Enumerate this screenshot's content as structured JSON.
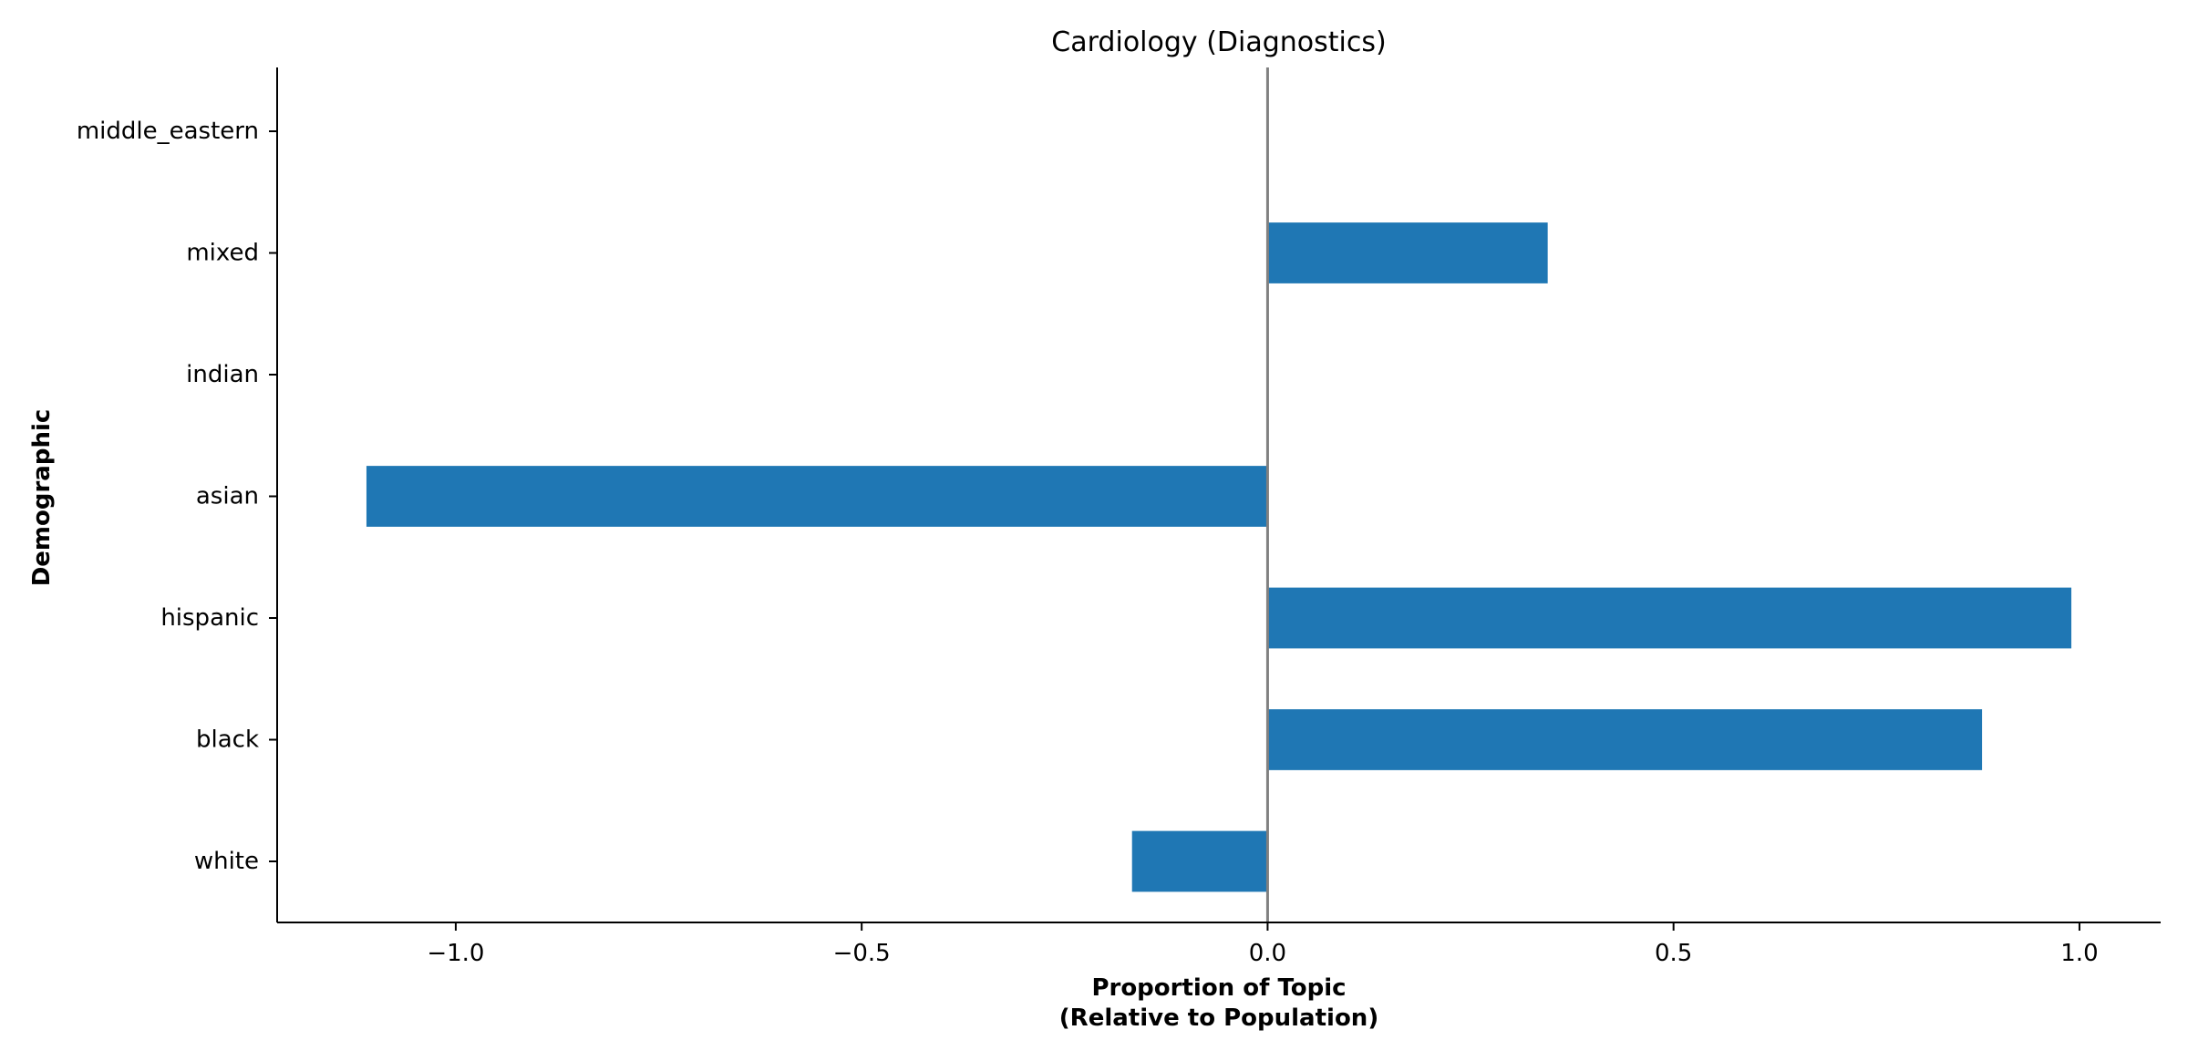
{
  "chart_data": {
    "type": "bar",
    "orientation": "horizontal",
    "title": "Cardiology (Diagnostics)",
    "xlabel_line1": "Proportion of Topic",
    "xlabel_line2": "(Relative to Population)",
    "ylabel": "Demographic",
    "categories": [
      "white",
      "black",
      "hispanic",
      "asian",
      "indian",
      "mixed",
      "middle_eastern"
    ],
    "values": [
      -0.167,
      0.88,
      0.99,
      -1.11,
      0.0,
      0.345,
      0.0
    ],
    "xlim": [
      -1.22,
      1.1
    ],
    "xticks": [
      -1.0,
      -0.5,
      0.0,
      0.5,
      1.0
    ],
    "xtick_labels": [
      "−1.0",
      "−0.5",
      "0.0",
      "0.5",
      "1.0"
    ],
    "zero_line": true,
    "grid": false,
    "colors": {
      "bar": "#1f77b4",
      "zero_line": "#808080",
      "axis": "#000000"
    }
  }
}
